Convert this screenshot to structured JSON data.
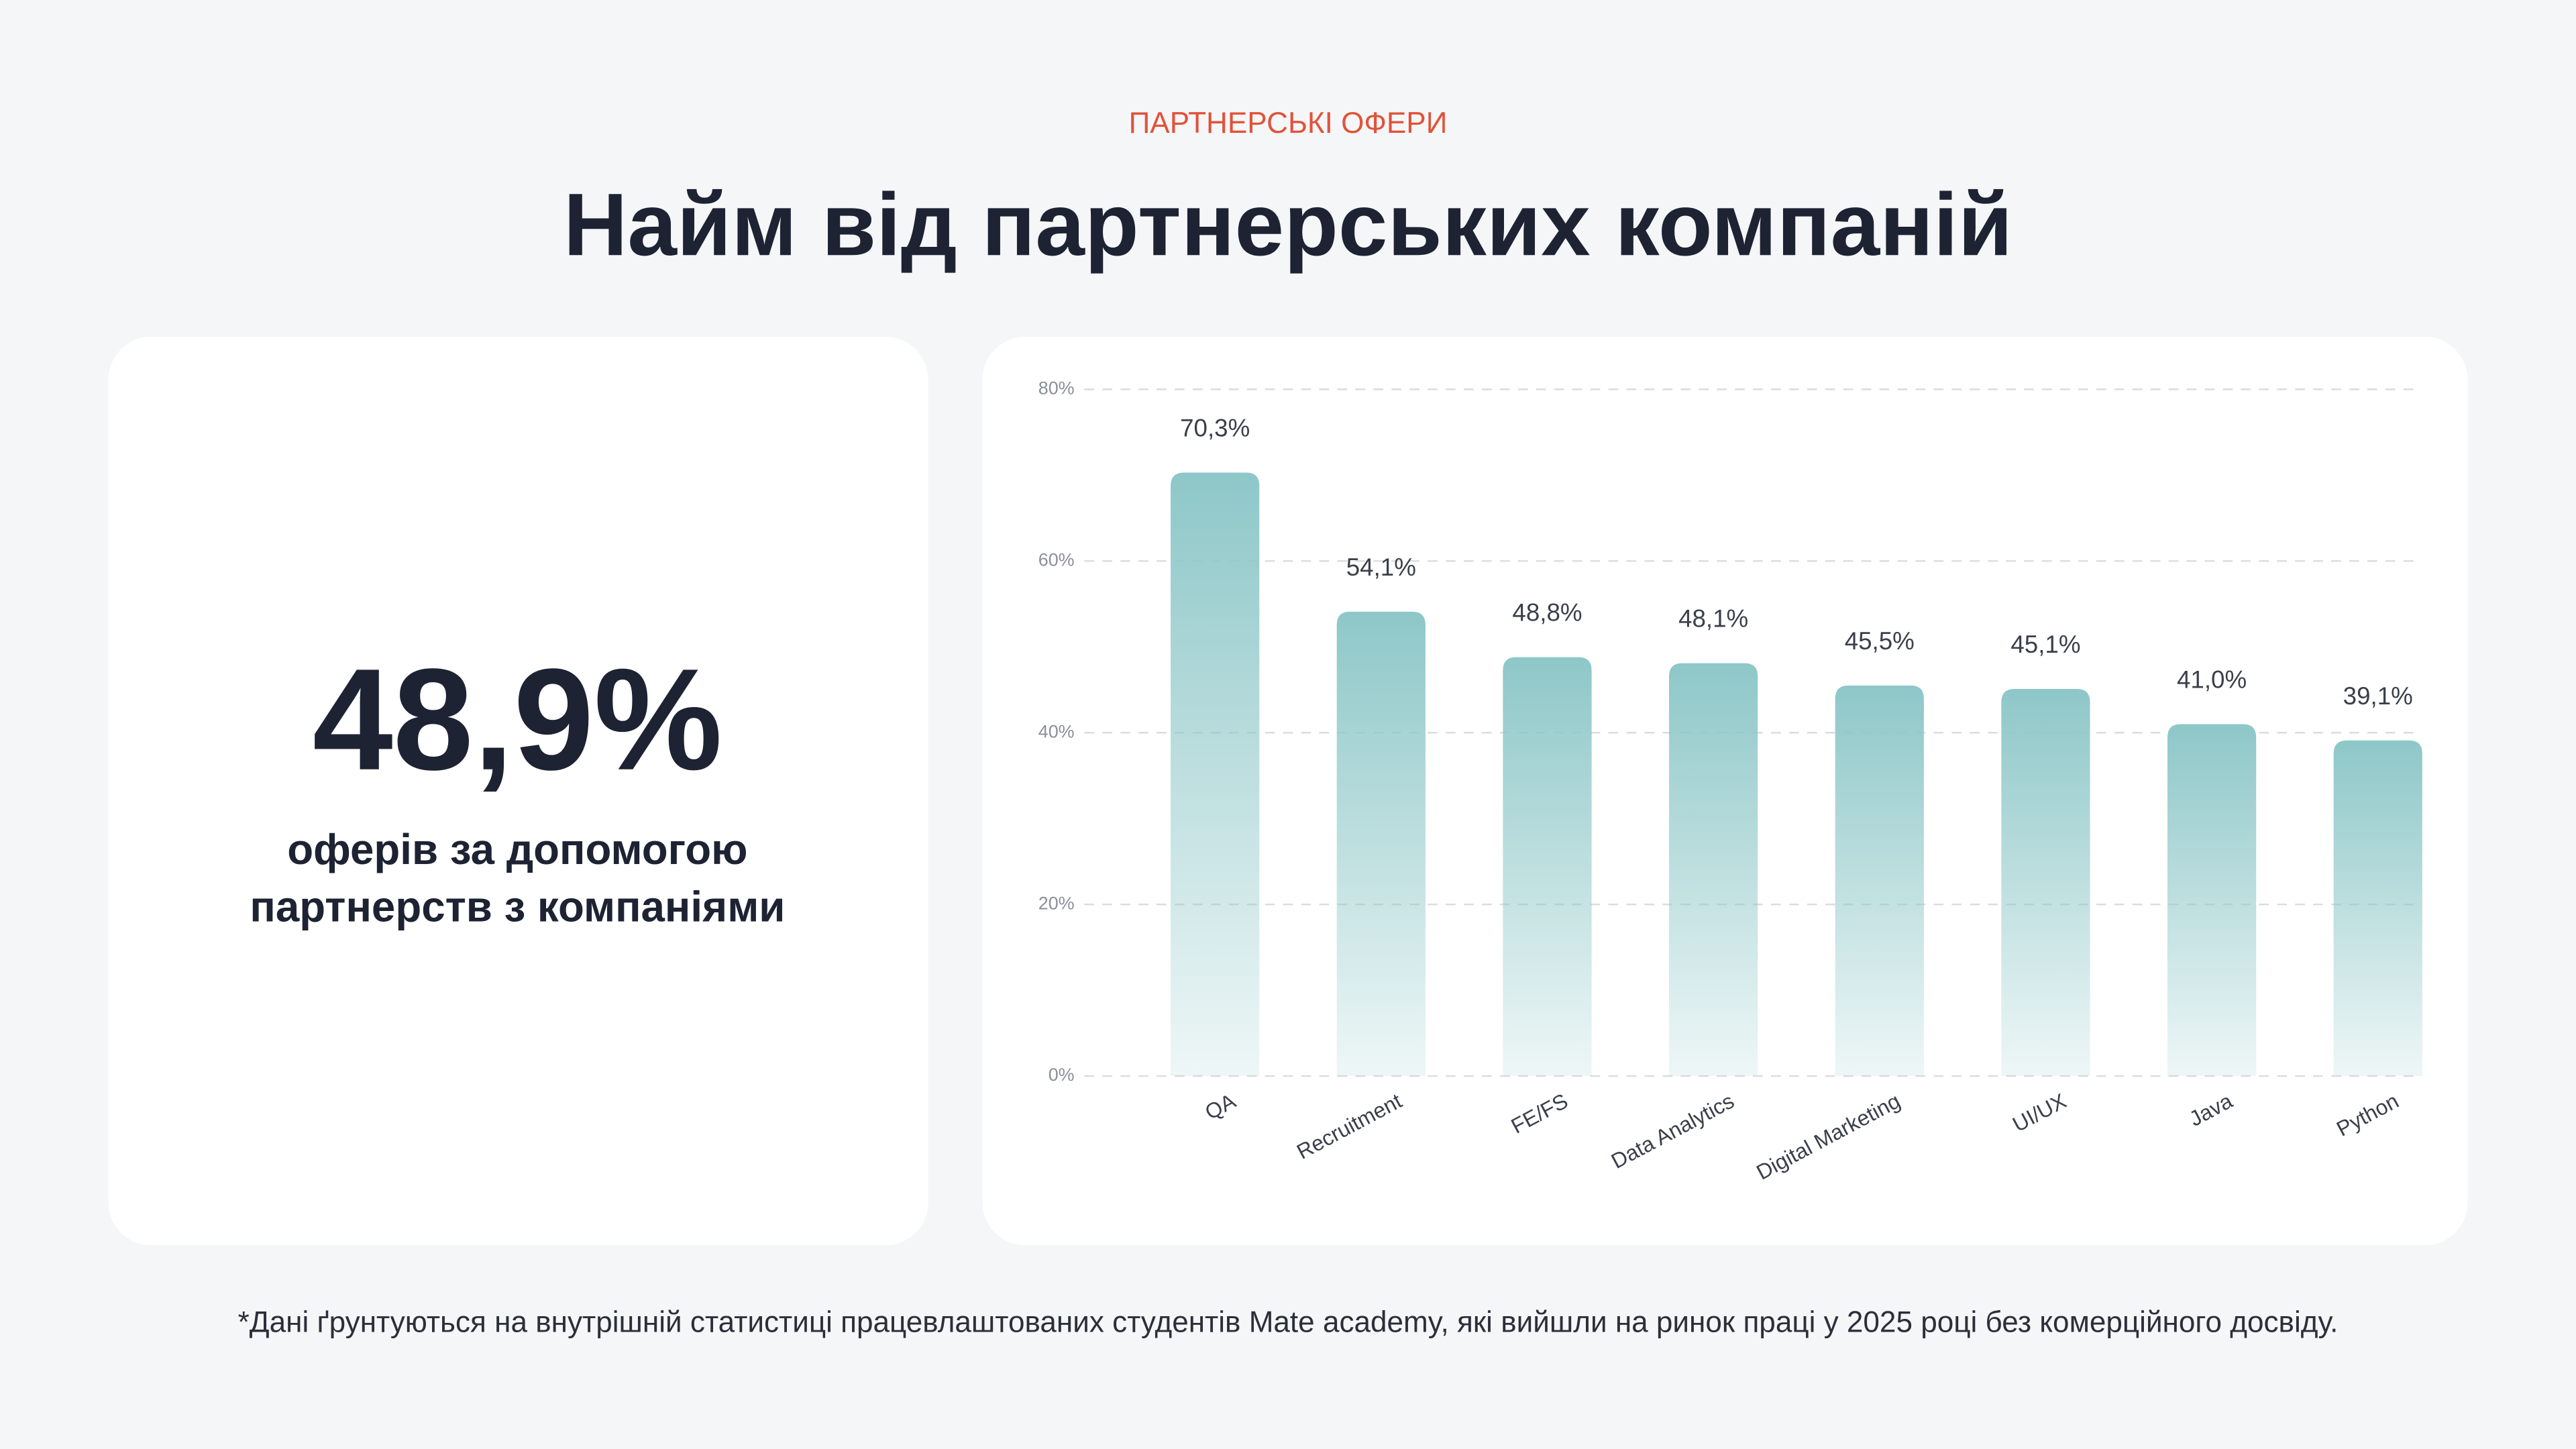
{
  "header": {
    "eyebrow": "ПАРТНЕРСЬКІ ОФЕРИ",
    "title": "Найм від партнерських компаній"
  },
  "stat": {
    "value": "48,9%",
    "caption": [
      "оферів за допомогою",
      "партнерств з компаніями"
    ]
  },
  "chart_data": {
    "type": "bar",
    "categories": [
      "QA",
      "Recruitment",
      "FE/FS",
      "Data Analytics",
      "Digital Marketing",
      "UI/UX",
      "Java",
      "Python"
    ],
    "values": [
      70.3,
      54.1,
      48.8,
      48.1,
      45.5,
      45.1,
      41.0,
      39.1
    ],
    "value_labels": [
      "70,3%",
      "54,1%",
      "48,8%",
      "48,1%",
      "45,5%",
      "45,1%",
      "41,0%",
      "39,1%"
    ],
    "color": "#8ec7c8",
    "ylim": [
      0,
      80
    ],
    "yticks": [
      {
        "value": 0,
        "label": "0%"
      },
      {
        "value": 20,
        "label": "20%"
      },
      {
        "value": 40,
        "label": "40%"
      },
      {
        "value": 60,
        "label": "60%"
      },
      {
        "value": 80,
        "label": "80%"
      }
    ],
    "grid": true
  },
  "footnote": "*Дані ґрунтуються на внутрішній статистиці працевлаштованих студентів Mate academy, які вийшли на ринок праці у 2025 році без комерційного досвіду."
}
